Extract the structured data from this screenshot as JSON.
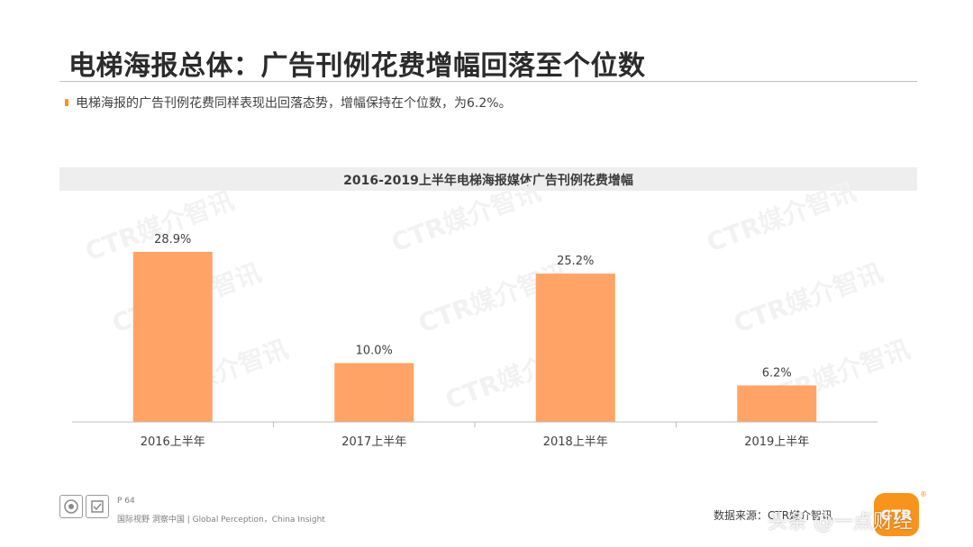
{
  "header": {
    "title": "电梯海报总体：广告刊例花费增幅回落至个位数",
    "bullet": "电梯海报的广告刊例花费同样表现出回落态势，增幅保持在个位数，为6.2%。"
  },
  "watermark": "CTR媒介智讯",
  "chart_data": {
    "type": "bar",
    "title": "2016-2019上半年电梯海报媒体广告刊例花费增幅",
    "categories": [
      "2016上半年",
      "2017上半年",
      "2018上半年",
      "2019上半年"
    ],
    "values": [
      28.9,
      10.0,
      25.2,
      6.2
    ],
    "value_labels": [
      "28.9%",
      "10.0%",
      "25.2%",
      "6.2%"
    ],
    "ylim": [
      0,
      35
    ],
    "xlabel": "",
    "ylabel": "",
    "grid": false,
    "legend": "none",
    "bar_color": "#FFA366"
  },
  "footer": {
    "page": "P 64",
    "slogan": "国际视野 洞察中国 | Global Perception，China Insight",
    "source": "数据来源：CTR媒介智讯",
    "logo_text": "CTR",
    "overlay_text": "头条 @一点财经"
  }
}
